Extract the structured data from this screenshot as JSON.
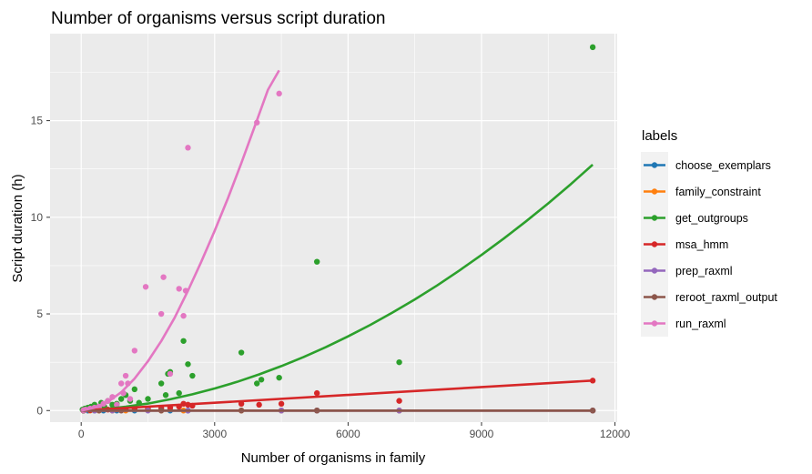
{
  "chart_data": {
    "type": "scatter",
    "title": "Number of organisms versus script duration",
    "xlabel": "Number of organisms in family",
    "ylabel": "Script duration (h)",
    "xlim": [
      -700,
      12050
    ],
    "ylim": [
      -0.6,
      19.5
    ],
    "x_ticks": [
      0,
      3000,
      6000,
      9000,
      12000
    ],
    "y_ticks": [
      0,
      5,
      10,
      15
    ],
    "grid": true,
    "legend": {
      "title": "labels",
      "placement": "right"
    },
    "series": [
      {
        "name": "choose_exemplars",
        "color": "#1f77b4",
        "points": [
          [
            50,
            0
          ],
          [
            150,
            0
          ],
          [
            300,
            0
          ],
          [
            500,
            0
          ],
          [
            800,
            0
          ],
          [
            1200,
            0
          ],
          [
            2000,
            0
          ],
          [
            2400,
            0
          ],
          [
            4500,
            0
          ],
          [
            5300,
            0
          ],
          [
            7150,
            0
          ],
          [
            11500,
            0
          ]
        ],
        "fit": [
          [
            0,
            0
          ],
          [
            11500,
            0
          ]
        ]
      },
      {
        "name": "family_constraint",
        "color": "#ff7f0e",
        "points": [
          [
            50,
            0
          ],
          [
            200,
            0
          ],
          [
            400,
            0
          ],
          [
            700,
            0
          ],
          [
            1000,
            0
          ],
          [
            1800,
            0
          ],
          [
            2300,
            0
          ],
          [
            3600,
            0
          ],
          [
            4500,
            0
          ],
          [
            5300,
            0
          ],
          [
            7150,
            0
          ],
          [
            11500,
            0
          ]
        ],
        "fit": [
          [
            0,
            0
          ],
          [
            11500,
            0
          ]
        ]
      },
      {
        "name": "get_outgroups",
        "color": "#2ca02c",
        "points": [
          [
            30,
            0.05
          ],
          [
            80,
            0.1
          ],
          [
            150,
            0.15
          ],
          [
            220,
            0.2
          ],
          [
            300,
            0.3
          ],
          [
            380,
            0.1
          ],
          [
            450,
            0.4
          ],
          [
            520,
            0.2
          ],
          [
            600,
            0.5
          ],
          [
            700,
            0.3
          ],
          [
            800,
            0.35
          ],
          [
            900,
            0.6
          ],
          [
            1000,
            0.8
          ],
          [
            1100,
            0.5
          ],
          [
            1200,
            1.1
          ],
          [
            1300,
            0.4
          ],
          [
            1500,
            0.6
          ],
          [
            1800,
            1.4
          ],
          [
            1900,
            0.8
          ],
          [
            1950,
            1.9
          ],
          [
            2000,
            2.0
          ],
          [
            2200,
            0.9
          ],
          [
            2300,
            3.6
          ],
          [
            2400,
            2.4
          ],
          [
            2500,
            1.8
          ],
          [
            3600,
            3.0
          ],
          [
            3950,
            1.4
          ],
          [
            4050,
            1.6
          ],
          [
            4450,
            1.7
          ],
          [
            5300,
            7.7
          ],
          [
            7150,
            2.5
          ],
          [
            11500,
            18.8
          ]
        ],
        "fit": [
          [
            0,
            0
          ],
          [
            500,
            0.07
          ],
          [
            1000,
            0.2
          ],
          [
            1500,
            0.36
          ],
          [
            2000,
            0.58
          ],
          [
            2500,
            0.84
          ],
          [
            3000,
            1.14
          ],
          [
            3500,
            1.48
          ],
          [
            4000,
            1.87
          ],
          [
            4500,
            2.3
          ],
          [
            5000,
            2.77
          ],
          [
            5500,
            3.28
          ],
          [
            6000,
            3.84
          ],
          [
            6500,
            4.43
          ],
          [
            7000,
            5.07
          ],
          [
            7500,
            5.75
          ],
          [
            8000,
            6.47
          ],
          [
            8500,
            7.24
          ],
          [
            9000,
            8.05
          ],
          [
            9500,
            8.9
          ],
          [
            10000,
            9.79
          ],
          [
            10500,
            10.72
          ],
          [
            11000,
            11.7
          ],
          [
            11500,
            12.72
          ]
        ]
      },
      {
        "name": "msa_hmm",
        "color": "#d62728",
        "points": [
          [
            50,
            0
          ],
          [
            200,
            0.02
          ],
          [
            400,
            0.03
          ],
          [
            600,
            0.05
          ],
          [
            800,
            0.06
          ],
          [
            1000,
            0.08
          ],
          [
            1200,
            0.1
          ],
          [
            1500,
            0.1
          ],
          [
            1800,
            0.12
          ],
          [
            2000,
            0.15
          ],
          [
            2200,
            0.2
          ],
          [
            2300,
            0.35
          ],
          [
            2400,
            0.3
          ],
          [
            2500,
            0.25
          ],
          [
            3600,
            0.35
          ],
          [
            4000,
            0.3
          ],
          [
            4500,
            0.35
          ],
          [
            5300,
            0.9
          ],
          [
            7150,
            0.5
          ],
          [
            11500,
            1.55
          ]
        ],
        "fit": [
          [
            0,
            0
          ],
          [
            11500,
            1.55
          ]
        ]
      },
      {
        "name": "prep_raxml",
        "color": "#9467bd",
        "points": [
          [
            50,
            0
          ],
          [
            300,
            0
          ],
          [
            700,
            0
          ],
          [
            1500,
            0
          ],
          [
            2400,
            0
          ],
          [
            4500,
            0
          ],
          [
            5300,
            0
          ],
          [
            7150,
            0
          ],
          [
            11500,
            0
          ]
        ],
        "fit": [
          [
            0,
            0
          ],
          [
            11500,
            0
          ]
        ]
      },
      {
        "name": "reroot_raxml_output",
        "color": "#8c564b",
        "points": [
          [
            50,
            0
          ],
          [
            400,
            0
          ],
          [
            900,
            0
          ],
          [
            1800,
            0
          ],
          [
            3600,
            0
          ],
          [
            5300,
            0
          ],
          [
            11500,
            0
          ]
        ],
        "fit": [
          [
            0,
            0
          ],
          [
            11500,
            0
          ]
        ]
      },
      {
        "name": "run_raxml",
        "color": "#e377c2",
        "points": [
          [
            50,
            0.02
          ],
          [
            100,
            0.05
          ],
          [
            200,
            0.1
          ],
          [
            300,
            0.15
          ],
          [
            400,
            0.2
          ],
          [
            500,
            0.35
          ],
          [
            600,
            0.5
          ],
          [
            700,
            0.7
          ],
          [
            800,
            0.3
          ],
          [
            900,
            1.4
          ],
          [
            950,
            0.9
          ],
          [
            1000,
            1.8
          ],
          [
            1050,
            1.4
          ],
          [
            1100,
            0.6
          ],
          [
            1200,
            3.1
          ],
          [
            1450,
            6.4
          ],
          [
            1800,
            5.0
          ],
          [
            1850,
            6.9
          ],
          [
            2000,
            1.9
          ],
          [
            2200,
            6.3
          ],
          [
            2300,
            4.9
          ],
          [
            2350,
            6.2
          ],
          [
            2400,
            13.6
          ],
          [
            3950,
            14.9
          ],
          [
            4450,
            16.4
          ]
        ],
        "fit": [
          [
            0,
            0
          ],
          [
            300,
            0.15
          ],
          [
            600,
            0.45
          ],
          [
            900,
            0.95
          ],
          [
            1200,
            1.65
          ],
          [
            1500,
            2.55
          ],
          [
            1800,
            3.6
          ],
          [
            2100,
            4.8
          ],
          [
            2400,
            6.2
          ],
          [
            2700,
            7.7
          ],
          [
            3000,
            9.3
          ],
          [
            3300,
            11.0
          ],
          [
            3600,
            12.8
          ],
          [
            3900,
            14.7
          ],
          [
            4200,
            16.6
          ],
          [
            4450,
            17.6
          ]
        ]
      }
    ]
  }
}
